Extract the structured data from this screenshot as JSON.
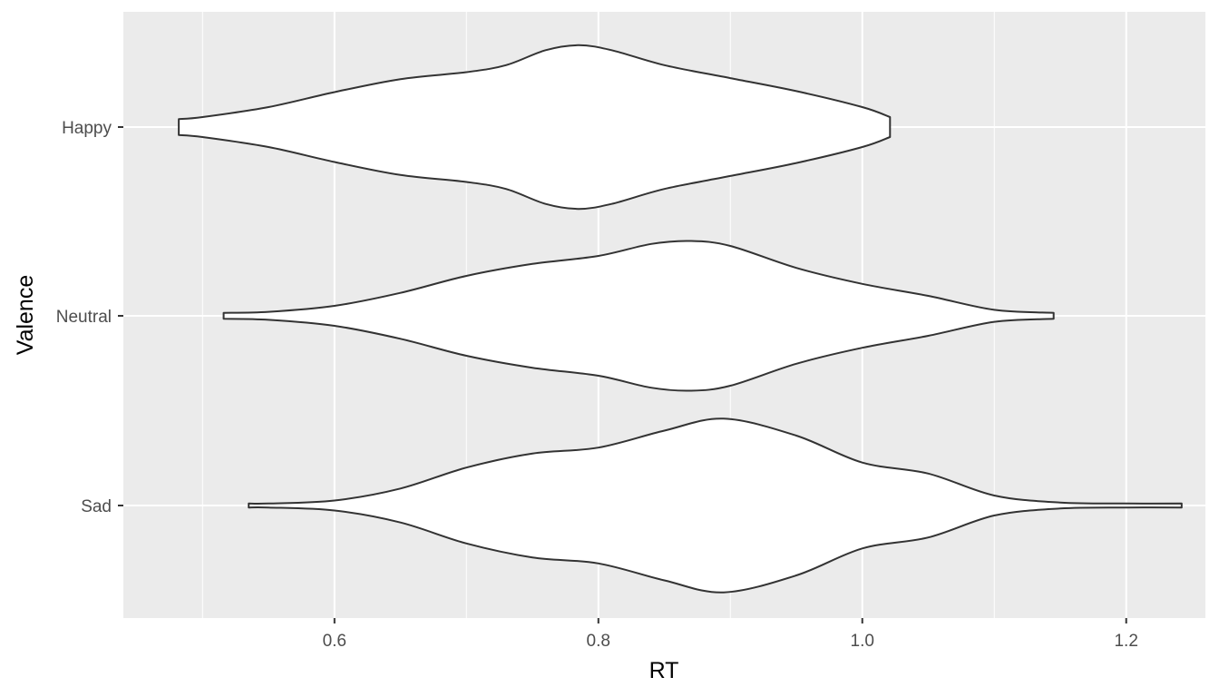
{
  "chart_data": {
    "type": "violin",
    "orientation": "horizontal",
    "xlabel": "RT",
    "ylabel": "Valence",
    "xlim": [
      0.44,
      1.26
    ],
    "x_ticks": [
      0.6,
      0.8,
      1.0,
      1.2
    ],
    "x_tick_labels": [
      "0.6",
      "0.8",
      "1.0",
      "1.2"
    ],
    "categories": [
      "Happy",
      "Neutral",
      "Sad"
    ],
    "grid": true,
    "panel_background": "#EBEBEB",
    "grid_color": "#FFFFFF",
    "violin_fill": "#FFFFFF",
    "violin_outline": "#333333",
    "series": [
      {
        "category": "Happy",
        "profile": [
          [
            0.482,
            0.08
          ],
          [
            0.5,
            0.1
          ],
          [
            0.55,
            0.2
          ],
          [
            0.6,
            0.35
          ],
          [
            0.65,
            0.48
          ],
          [
            0.7,
            0.55
          ],
          [
            0.73,
            0.62
          ],
          [
            0.76,
            0.77
          ],
          [
            0.785,
            0.82
          ],
          [
            0.81,
            0.77
          ],
          [
            0.85,
            0.62
          ],
          [
            0.9,
            0.49
          ],
          [
            0.95,
            0.36
          ],
          [
            1.0,
            0.2
          ],
          [
            1.021,
            0.1
          ]
        ]
      },
      {
        "category": "Neutral",
        "profile": [
          [
            0.516,
            0.03
          ],
          [
            0.55,
            0.04
          ],
          [
            0.6,
            0.1
          ],
          [
            0.65,
            0.23
          ],
          [
            0.7,
            0.4
          ],
          [
            0.75,
            0.52
          ],
          [
            0.8,
            0.6
          ],
          [
            0.84,
            0.72
          ],
          [
            0.87,
            0.75
          ],
          [
            0.9,
            0.7
          ],
          [
            0.95,
            0.48
          ],
          [
            1.0,
            0.32
          ],
          [
            1.05,
            0.2
          ],
          [
            1.1,
            0.06
          ],
          [
            1.145,
            0.03
          ]
        ]
      },
      {
        "category": "Sad",
        "profile": [
          [
            0.535,
            0.02
          ],
          [
            0.55,
            0.02
          ],
          [
            0.6,
            0.05
          ],
          [
            0.65,
            0.17
          ],
          [
            0.7,
            0.38
          ],
          [
            0.75,
            0.52
          ],
          [
            0.8,
            0.58
          ],
          [
            0.85,
            0.75
          ],
          [
            0.895,
            0.87
          ],
          [
            0.95,
            0.7
          ],
          [
            1.0,
            0.43
          ],
          [
            1.05,
            0.32
          ],
          [
            1.1,
            0.1
          ],
          [
            1.15,
            0.03
          ],
          [
            1.2,
            0.02
          ],
          [
            1.242,
            0.02
          ]
        ]
      }
    ]
  }
}
